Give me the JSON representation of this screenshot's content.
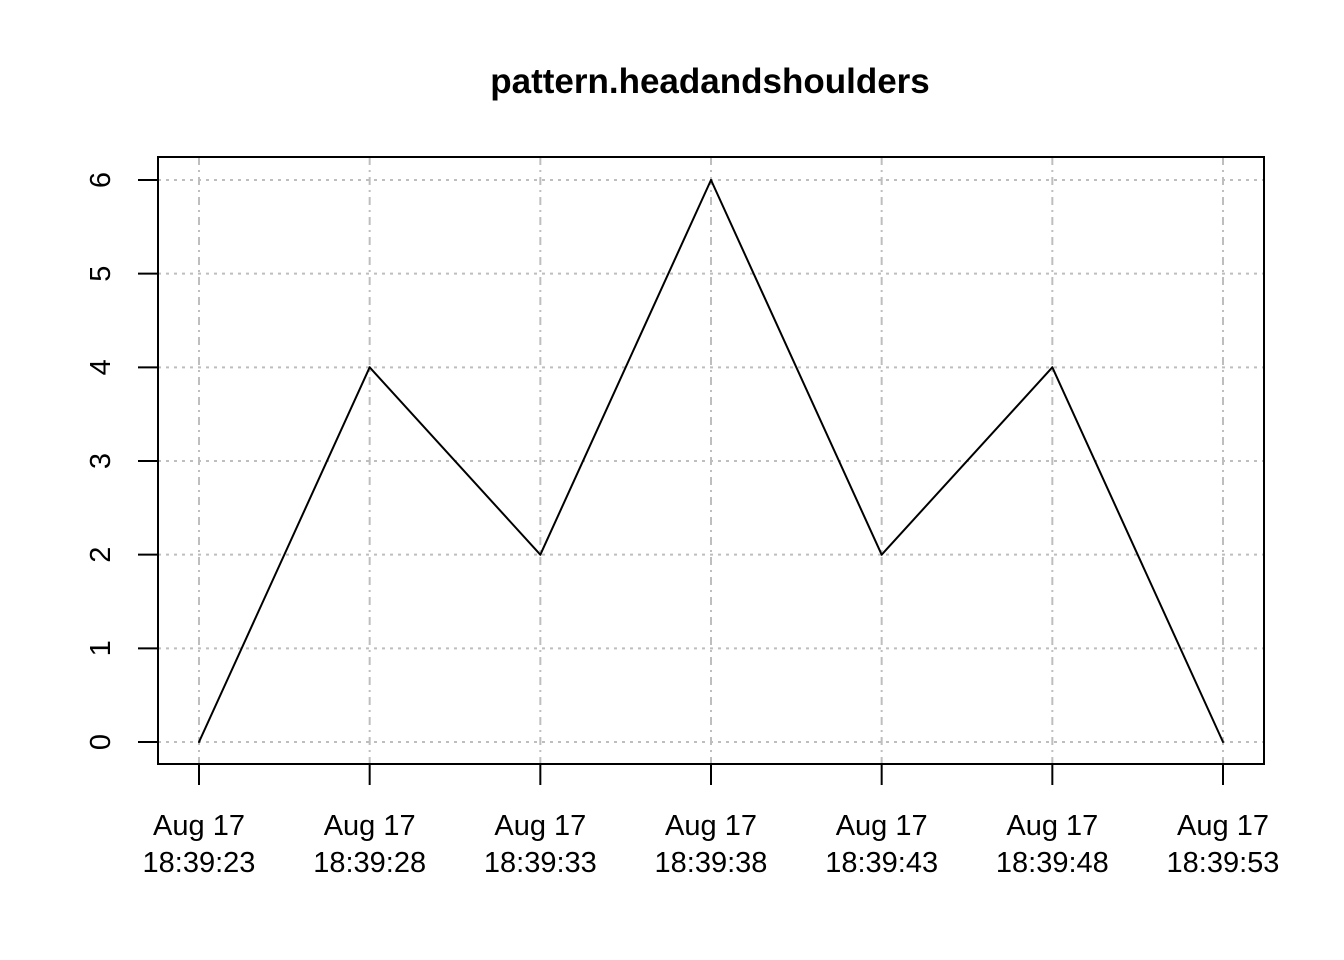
{
  "chart_data": {
    "type": "line",
    "title": "pattern.headandshoulders",
    "xlabel": "",
    "ylabel": "",
    "x_ticks": [
      {
        "date": "Aug 17",
        "time": "18:39:23"
      },
      {
        "date": "Aug 17",
        "time": "18:39:28"
      },
      {
        "date": "Aug 17",
        "time": "18:39:33"
      },
      {
        "date": "Aug 17",
        "time": "18:39:38"
      },
      {
        "date": "Aug 17",
        "time": "18:39:43"
      },
      {
        "date": "Aug 17",
        "time": "18:39:48"
      },
      {
        "date": "Aug 17",
        "time": "18:39:53"
      }
    ],
    "x": [
      "Aug 17 18:39:23",
      "Aug 17 18:39:28",
      "Aug 17 18:39:33",
      "Aug 17 18:39:38",
      "Aug 17 18:39:43",
      "Aug 17 18:39:48",
      "Aug 17 18:39:53"
    ],
    "series": [
      {
        "values": [
          0,
          4,
          2,
          6,
          2,
          4,
          0
        ]
      }
    ],
    "y_ticks": [
      "0",
      "1",
      "2",
      "3",
      "4",
      "5",
      "6"
    ],
    "ylim": [
      0,
      6
    ],
    "grid": true,
    "colors": {
      "line": "#000000",
      "grid": "#bebebe",
      "axis": "#000000"
    }
  }
}
